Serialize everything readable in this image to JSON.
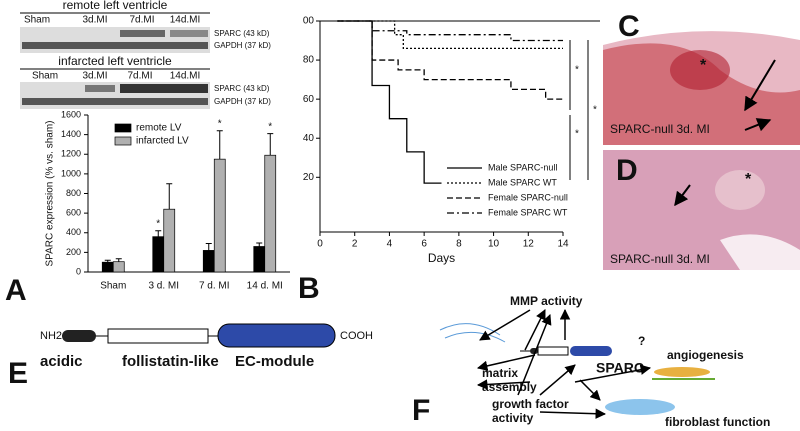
{
  "blot": {
    "remote_title": "remote left ventricle",
    "infarcted_title": "infarcted left ventricle",
    "lanes": [
      "Sham",
      "3d.MI",
      "7d.MI",
      "14d.MI"
    ],
    "sparc": "SPARC (43 kD)",
    "gapdh": "GAPDH (37 kD)"
  },
  "chart_data": [
    {
      "type": "bar",
      "ylabel": "SPARC expression (% vs. sham)",
      "categories": [
        "Sham",
        "3 d. MI",
        "7 d. MI",
        "14 d. MI"
      ],
      "series": [
        {
          "name": "remote LV",
          "color": "#000000",
          "values": [
            100,
            360,
            220,
            260
          ],
          "errors": [
            20,
            60,
            70,
            35
          ]
        },
        {
          "name": "infarcted LV",
          "color": "#b0b0b0",
          "values": [
            105,
            640,
            1150,
            1190
          ],
          "errors": [
            30,
            260,
            290,
            220
          ]
        }
      ],
      "ylim": [
        0,
        1600
      ],
      "yticks": [
        0,
        200,
        400,
        600,
        800,
        1000,
        1200,
        1400,
        1600
      ],
      "annotations": [
        "*",
        "*",
        "*"
      ],
      "legend": "upper left"
    },
    {
      "type": "line",
      "xlabel": "Days",
      "xlim": [
        0,
        14
      ],
      "xticks": [
        0,
        2,
        4,
        6,
        8,
        10,
        12,
        14
      ],
      "ylim": [
        -8,
        100
      ],
      "yticks": [
        20,
        40,
        60,
        80,
        {
          "value": 100,
          "label": "00"
        }
      ],
      "series": [
        {
          "name": "Male SPARC-null",
          "color": "#000000",
          "linestyle": "solid",
          "x": [
            1,
            3,
            4,
            5,
            6,
            7
          ],
          "values": [
            100,
            67,
            50,
            33,
            17,
            17
          ]
        },
        {
          "name": "Male SPARC WT",
          "color": "#000000",
          "linestyle": "dotted",
          "x": [
            1,
            4.3,
            4.8,
            14
          ],
          "values": [
            100,
            93,
            86,
            86
          ]
        },
        {
          "name": "Female SPARC-null",
          "color": "#000000",
          "linestyle": "dashed",
          "x": [
            1,
            3,
            4.5,
            6,
            11,
            13,
            14
          ],
          "values": [
            100,
            80,
            75,
            70,
            65,
            60,
            60
          ]
        },
        {
          "name": "Female SPARC WT",
          "color": "#000000",
          "linestyle": "dashdot",
          "x": [
            1,
            3,
            5,
            11,
            14
          ],
          "values": [
            100,
            95,
            93,
            90,
            90
          ]
        }
      ],
      "annotations": [
        "*",
        "*",
        "*"
      ],
      "legend": "lower right"
    }
  ],
  "panels": {
    "A": "A",
    "B": "B",
    "C": "C",
    "D": "D",
    "E": "E",
    "F": "F",
    "c_caption": "SPARC-null 3d. MI",
    "d_caption": "SPARC-null 3d. MI",
    "c_star": "*",
    "d_star": "*"
  },
  "domains": {
    "nterm": "NH2",
    "cterm": "COOH",
    "acidic": "acidic",
    "follistatin": "follistatin-like",
    "ec": "EC-module"
  },
  "scheme": {
    "mmp": "MMP activity",
    "matrix1": "matrix",
    "matrix2": "assembly",
    "sparc": "SPARC",
    "q": "?",
    "angio": "angiogenesis",
    "gf1": "growth factor",
    "gf2": "activity",
    "fibro": "fibroblast function"
  }
}
